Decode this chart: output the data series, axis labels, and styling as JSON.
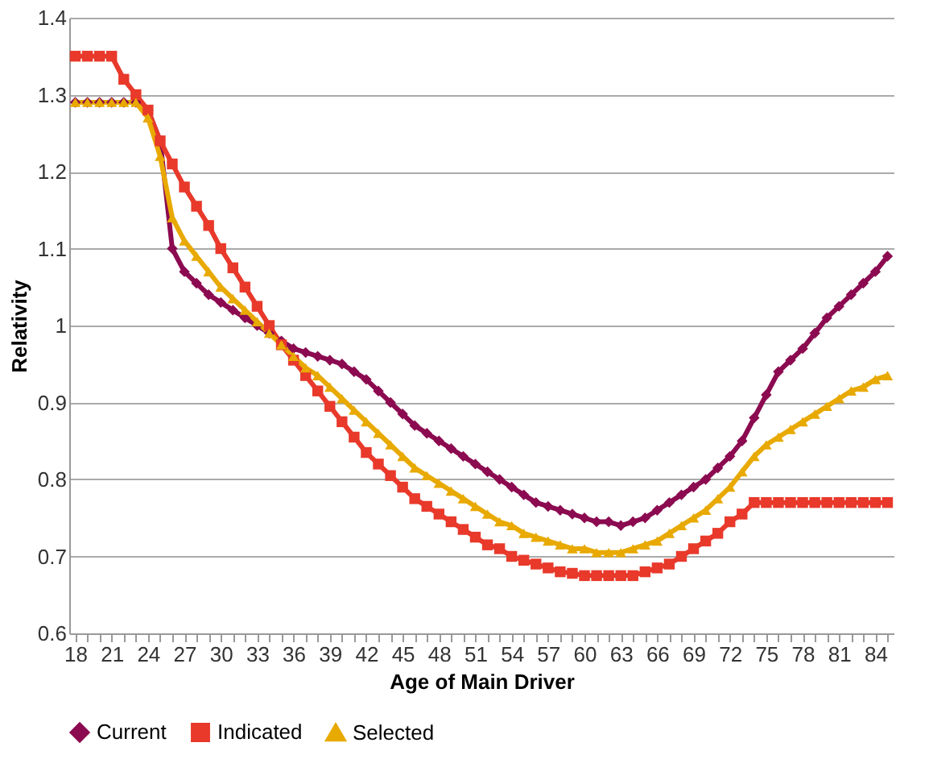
{
  "chart_data": {
    "type": "line",
    "xlabel": "Age of Main Driver",
    "ylabel": "Relativity",
    "categories": [
      "18",
      null,
      null,
      "21",
      null,
      null,
      "24",
      null,
      null,
      "27",
      null,
      null,
      "30",
      null,
      null,
      "33",
      null,
      null,
      "36",
      null,
      null,
      "39",
      null,
      null,
      "42",
      null,
      null,
      "45",
      null,
      null,
      "48",
      null,
      null,
      "51",
      null,
      null,
      "54",
      null,
      null,
      "57",
      null,
      null,
      "60",
      null,
      null,
      "63",
      null,
      null,
      "66",
      null,
      null,
      "69",
      null,
      null,
      "72",
      null,
      null,
      "75",
      null,
      null,
      "78",
      null,
      null,
      "81",
      null,
      null,
      "84",
      null
    ],
    "series": [
      {
        "name": "Current",
        "color": "#8b0a50",
        "marker": "diamond",
        "values": [
          1.29,
          1.29,
          1.29,
          1.29,
          1.29,
          1.29,
          1.28,
          1.24,
          1.1,
          1.07,
          1.055,
          1.04,
          1.03,
          1.02,
          1.01,
          1.0,
          0.99,
          0.98,
          0.97,
          0.965,
          0.96,
          0.955,
          0.95,
          0.94,
          0.93,
          0.915,
          0.9,
          0.885,
          0.87,
          0.86,
          0.85,
          0.84,
          0.83,
          0.82,
          0.81,
          0.8,
          0.79,
          0.78,
          0.77,
          0.765,
          0.76,
          0.755,
          0.75,
          0.745,
          0.745,
          0.74,
          0.745,
          0.75,
          0.76,
          0.77,
          0.78,
          0.79,
          0.8,
          0.815,
          0.83,
          0.85,
          0.88,
          0.91,
          0.94,
          0.955,
          0.97,
          0.99,
          1.01,
          1.025,
          1.04,
          1.055,
          1.07,
          1.09
        ]
      },
      {
        "name": "Indicated",
        "color": "#e8392b",
        "marker": "square",
        "values": [
          1.35,
          1.35,
          1.35,
          1.35,
          1.32,
          1.3,
          1.28,
          1.24,
          1.21,
          1.18,
          1.155,
          1.13,
          1.1,
          1.075,
          1.05,
          1.025,
          1.0,
          0.975,
          0.955,
          0.935,
          0.915,
          0.895,
          0.875,
          0.855,
          0.835,
          0.82,
          0.805,
          0.79,
          0.775,
          0.765,
          0.755,
          0.745,
          0.735,
          0.725,
          0.715,
          0.71,
          0.7,
          0.695,
          0.69,
          0.685,
          0.68,
          0.678,
          0.675,
          0.675,
          0.675,
          0.675,
          0.675,
          0.68,
          0.685,
          0.69,
          0.7,
          0.71,
          0.72,
          0.73,
          0.745,
          0.755,
          0.77,
          0.77,
          0.77,
          0.77,
          0.77,
          0.77,
          0.77,
          0.77,
          0.77,
          0.77,
          0.77,
          0.77
        ]
      },
      {
        "name": "Selected",
        "color": "#e8a900",
        "marker": "triangle",
        "values": [
          1.29,
          1.29,
          1.29,
          1.29,
          1.29,
          1.29,
          1.27,
          1.22,
          1.14,
          1.11,
          1.09,
          1.07,
          1.05,
          1.035,
          1.02,
          1.005,
          0.99,
          0.975,
          0.96,
          0.945,
          0.935,
          0.92,
          0.905,
          0.89,
          0.875,
          0.86,
          0.845,
          0.83,
          0.815,
          0.805,
          0.795,
          0.785,
          0.775,
          0.765,
          0.755,
          0.745,
          0.74,
          0.73,
          0.725,
          0.72,
          0.715,
          0.71,
          0.71,
          0.705,
          0.705,
          0.705,
          0.71,
          0.715,
          0.72,
          0.73,
          0.74,
          0.75,
          0.76,
          0.775,
          0.79,
          0.81,
          0.83,
          0.845,
          0.855,
          0.865,
          0.875,
          0.885,
          0.895,
          0.905,
          0.915,
          0.92,
          0.93,
          0.935
        ]
      }
    ],
    "ylim": [
      0.6,
      1.4
    ],
    "yticks": [
      0.6,
      0.7,
      0.8,
      0.9,
      1,
      1.1,
      1.2,
      1.3,
      1.4
    ],
    "grid": "y",
    "legend": "bottom",
    "line_style": "solid"
  }
}
